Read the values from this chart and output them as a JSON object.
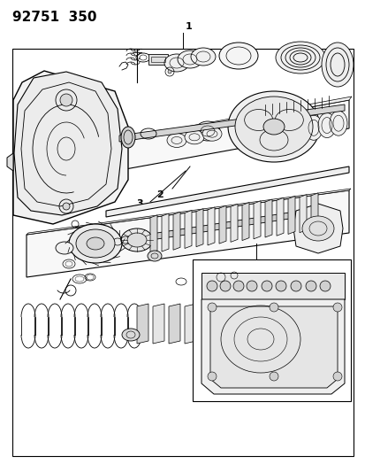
{
  "title_text": "92751  350",
  "background_color": "#ffffff",
  "line_color": "#000000",
  "label_color": "#000000",
  "title_fontsize": 11,
  "label_fontsize": 8,
  "fig_width": 4.14,
  "fig_height": 5.33,
  "dpi": 100
}
